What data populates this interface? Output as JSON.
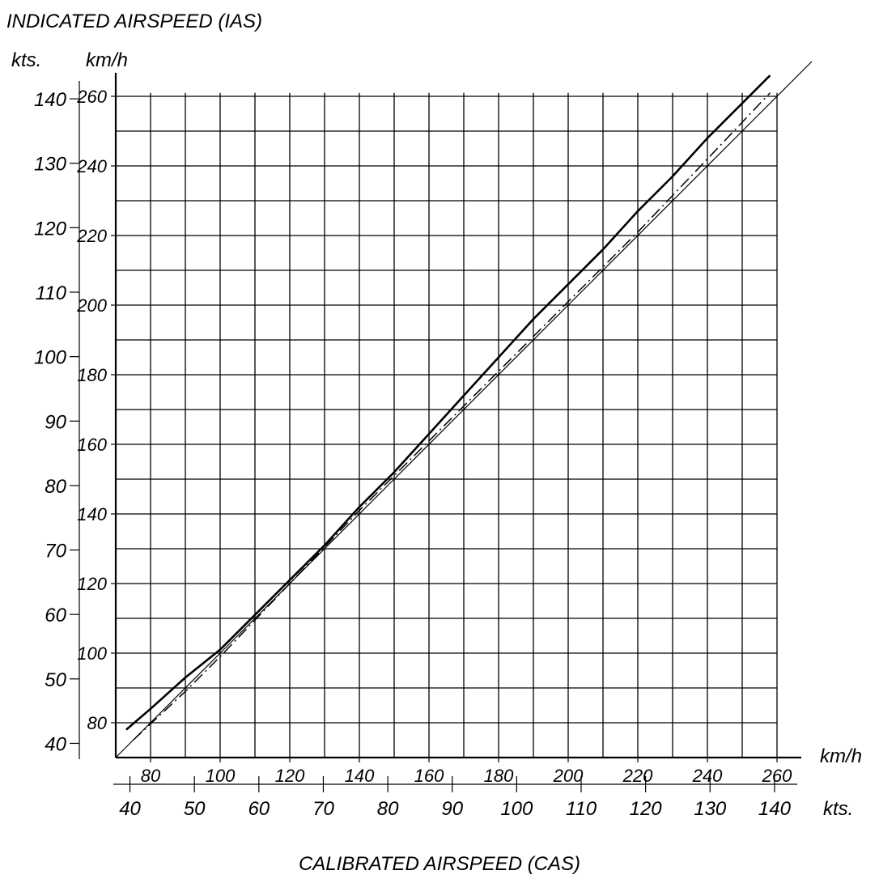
{
  "chart_data": {
    "type": "line",
    "title": "INDICATED AIRSPEED (IAS)",
    "xlabel": "CALIBRATED AIRSPEED (CAS)",
    "ylabel": "INDICATED AIRSPEED (IAS)",
    "x_units": {
      "primary": "km/h",
      "secondary": "kts."
    },
    "y_units": {
      "primary": "km/h",
      "secondary": "kts."
    },
    "xlim_kmh": [
      70,
      260
    ],
    "ylim_kmh": [
      70,
      265
    ],
    "grid": true,
    "x_ticks_kmh": [
      "80",
      "100",
      "120",
      "140",
      "160",
      "180",
      "200",
      "220",
      "240",
      "260"
    ],
    "x_ticks_kts": [
      "40",
      "50",
      "60",
      "70",
      "80",
      "90",
      "100",
      "110",
      "120",
      "130",
      "140"
    ],
    "y_ticks_kmh": [
      "80",
      "100",
      "120",
      "140",
      "160",
      "180",
      "200",
      "220",
      "240",
      "260"
    ],
    "y_ticks_kts": [
      "40",
      "50",
      "60",
      "70",
      "80",
      "90",
      "100",
      "110",
      "120",
      "130",
      "140"
    ],
    "series": [
      {
        "style": "solid-thick",
        "x": [
          73,
          80,
          90,
          100,
          110,
          120,
          130,
          140,
          150,
          160,
          170,
          180,
          190,
          200,
          210,
          220,
          230,
          240,
          250,
          258
        ],
        "y": [
          78,
          84,
          93,
          101,
          111,
          121,
          131,
          142,
          152,
          163,
          174,
          185,
          196,
          206,
          216,
          227,
          237,
          248,
          258,
          266
        ]
      },
      {
        "style": "dash-dot",
        "x": [
          75,
          90,
          100,
          120,
          140,
          160,
          180,
          200,
          220,
          240,
          258
        ],
        "y": [
          75,
          89,
          99,
          120,
          141,
          161,
          181,
          201,
          221,
          242,
          261
        ]
      },
      {
        "style": "solid-thin",
        "x": [
          70,
          100,
          150,
          200,
          250,
          270
        ],
        "y": [
          70,
          100,
          150,
          200,
          250,
          270
        ]
      }
    ]
  }
}
